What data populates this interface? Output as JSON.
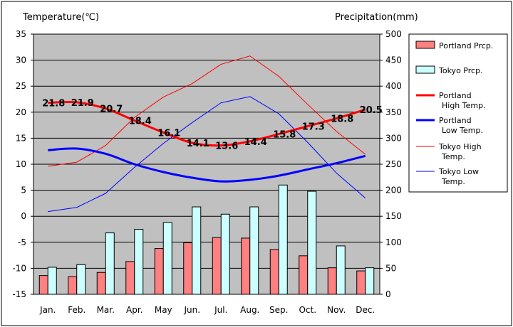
{
  "chart_data": {
    "type": "bar+line",
    "categories": [
      "Jan.",
      "Feb.",
      "Mar.",
      "Apr.",
      "May",
      "Jun.",
      "Jul.",
      "Aug.",
      "Sep.",
      "Oct.",
      "Nov.",
      "Dec."
    ],
    "y_left": {
      "label": "Temperature(℃)",
      "min": -15,
      "max": 35,
      "step": 5
    },
    "y_right": {
      "label": "Precipitation(mm)",
      "min": 0,
      "max": 500,
      "step": 50
    },
    "bars": [
      {
        "name": "Portland Prcp.",
        "color": "#ff8080",
        "values": [
          36,
          34,
          42,
          63,
          88,
          99,
          109,
          108,
          86,
          74,
          51,
          45
        ]
      },
      {
        "name": "Tokyo Prcp.",
        "color": "#ccffff",
        "values": [
          52,
          57,
          118,
          125,
          138,
          168,
          154,
          168,
          210,
          198,
          93,
          51
        ]
      }
    ],
    "lines": [
      {
        "name": "Portland\nHigh Temp.",
        "color": "#ff0000",
        "width": 3,
        "values": [
          21.8,
          21.9,
          20.7,
          18.4,
          16.1,
          14.1,
          13.6,
          14.4,
          15.8,
          17.3,
          18.8,
          20.5
        ],
        "labels": [
          "21.8",
          "21.9",
          "20.7",
          "18.4",
          "16.1",
          "14.1",
          "13.6",
          "14.4",
          "15.8",
          "17.3",
          "18.8",
          "20.5"
        ]
      },
      {
        "name": "Portland\nLow Temp.",
        "color": "#0000ff",
        "width": 3,
        "values": [
          12.7,
          13.0,
          12.0,
          10.0,
          8.5,
          7.4,
          6.7,
          7.0,
          7.8,
          9.0,
          10.2,
          11.6
        ]
      },
      {
        "name": "Tokyo High\nTemp.",
        "color": "#ff0000",
        "width": 1,
        "values": [
          9.6,
          10.4,
          13.6,
          19.0,
          22.9,
          25.5,
          29.2,
          30.8,
          26.9,
          21.5,
          16.3,
          11.9
        ]
      },
      {
        "name": "Tokyo Low\nTemp.",
        "color": "#0000ff",
        "width": 1,
        "values": [
          0.9,
          1.7,
          4.4,
          9.4,
          14.0,
          18.0,
          21.8,
          23.0,
          19.7,
          14.2,
          8.3,
          3.5
        ]
      }
    ],
    "legend_position": "right",
    "plot_background": "#c0c0c0",
    "grid": "horizontal"
  }
}
